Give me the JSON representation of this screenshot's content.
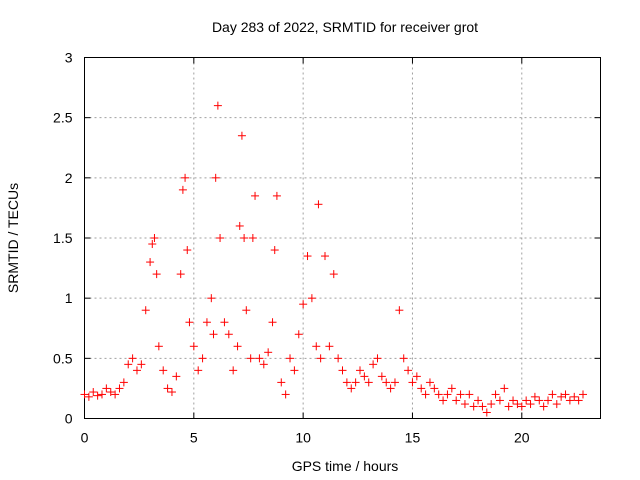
{
  "chart_data": {
    "type": "scatter",
    "title": "Day 283 of 2022, SRMTID for receiver grot",
    "xlabel": "GPS time / hours",
    "ylabel": "SRMTID / TECUs",
    "xlim": [
      0,
      23.6
    ],
    "ylim": [
      0,
      3
    ],
    "xticks": [
      "0",
      "5",
      "10",
      "15",
      "20"
    ],
    "yticks": [
      "0",
      "0.5",
      "1",
      "1.5",
      "2",
      "2.5",
      "3"
    ],
    "marker": "+",
    "color": "#ff0000",
    "grid": true,
    "series": [
      {
        "name": "grot",
        "x": [
          0.0,
          0.2,
          0.4,
          0.6,
          0.8,
          1.0,
          1.2,
          1.4,
          1.6,
          1.8,
          2.0,
          2.2,
          2.4,
          2.6,
          2.8,
          3.0,
          3.1,
          3.2,
          3.3,
          3.4,
          3.6,
          3.8,
          4.0,
          4.2,
          4.4,
          4.5,
          4.6,
          4.7,
          4.8,
          5.0,
          5.2,
          5.4,
          5.6,
          5.8,
          5.9,
          6.0,
          6.1,
          6.2,
          6.4,
          6.6,
          6.8,
          7.0,
          7.1,
          7.2,
          7.3,
          7.4,
          7.6,
          7.7,
          7.8,
          8.0,
          8.2,
          8.4,
          8.6,
          8.7,
          8.8,
          9.0,
          9.2,
          9.4,
          9.6,
          9.8,
          10.0,
          10.2,
          10.4,
          10.6,
          10.7,
          10.8,
          11.0,
          11.2,
          11.4,
          11.6,
          11.8,
          12.0,
          12.2,
          12.4,
          12.6,
          12.8,
          13.0,
          13.2,
          13.4,
          13.6,
          13.8,
          14.0,
          14.2,
          14.4,
          14.6,
          14.8,
          15.0,
          15.2,
          15.4,
          15.6,
          15.8,
          16.0,
          16.2,
          16.4,
          16.6,
          16.8,
          17.0,
          17.2,
          17.4,
          17.6,
          17.8,
          18.0,
          18.2,
          18.4,
          18.6,
          18.8,
          19.0,
          19.2,
          19.4,
          19.6,
          19.8,
          20.0,
          20.2,
          20.4,
          20.6,
          20.8,
          21.0,
          21.2,
          21.4,
          21.6,
          21.8,
          22.0,
          22.2,
          22.4,
          22.6,
          22.8
        ],
        "y": [
          0.2,
          0.18,
          0.22,
          0.19,
          0.2,
          0.25,
          0.22,
          0.2,
          0.25,
          0.3,
          0.45,
          0.5,
          0.4,
          0.45,
          0.9,
          1.3,
          1.45,
          1.5,
          1.2,
          0.6,
          0.4,
          0.25,
          0.22,
          0.35,
          1.2,
          1.9,
          2.0,
          1.4,
          0.8,
          0.6,
          0.4,
          0.5,
          0.8,
          1.0,
          0.7,
          2.0,
          2.6,
          1.5,
          0.8,
          0.7,
          0.4,
          0.6,
          1.6,
          2.35,
          1.5,
          0.9,
          0.5,
          1.5,
          1.85,
          0.5,
          0.45,
          0.55,
          0.8,
          1.4,
          1.85,
          0.3,
          0.2,
          0.5,
          0.4,
          0.7,
          0.95,
          1.35,
          1.0,
          0.6,
          1.78,
          0.5,
          1.35,
          0.6,
          1.2,
          0.5,
          0.4,
          0.3,
          0.25,
          0.3,
          0.4,
          0.35,
          0.3,
          0.45,
          0.5,
          0.35,
          0.3,
          0.25,
          0.3,
          0.9,
          0.5,
          0.4,
          0.3,
          0.35,
          0.25,
          0.2,
          0.3,
          0.25,
          0.2,
          0.15,
          0.2,
          0.25,
          0.15,
          0.2,
          0.12,
          0.2,
          0.1,
          0.15,
          0.1,
          0.05,
          0.12,
          0.2,
          0.15,
          0.25,
          0.1,
          0.15,
          0.12,
          0.1,
          0.15,
          0.12,
          0.18,
          0.15,
          0.1,
          0.15,
          0.2,
          0.12,
          0.18,
          0.2,
          0.15,
          0.18,
          0.15,
          0.2
        ]
      }
    ]
  }
}
